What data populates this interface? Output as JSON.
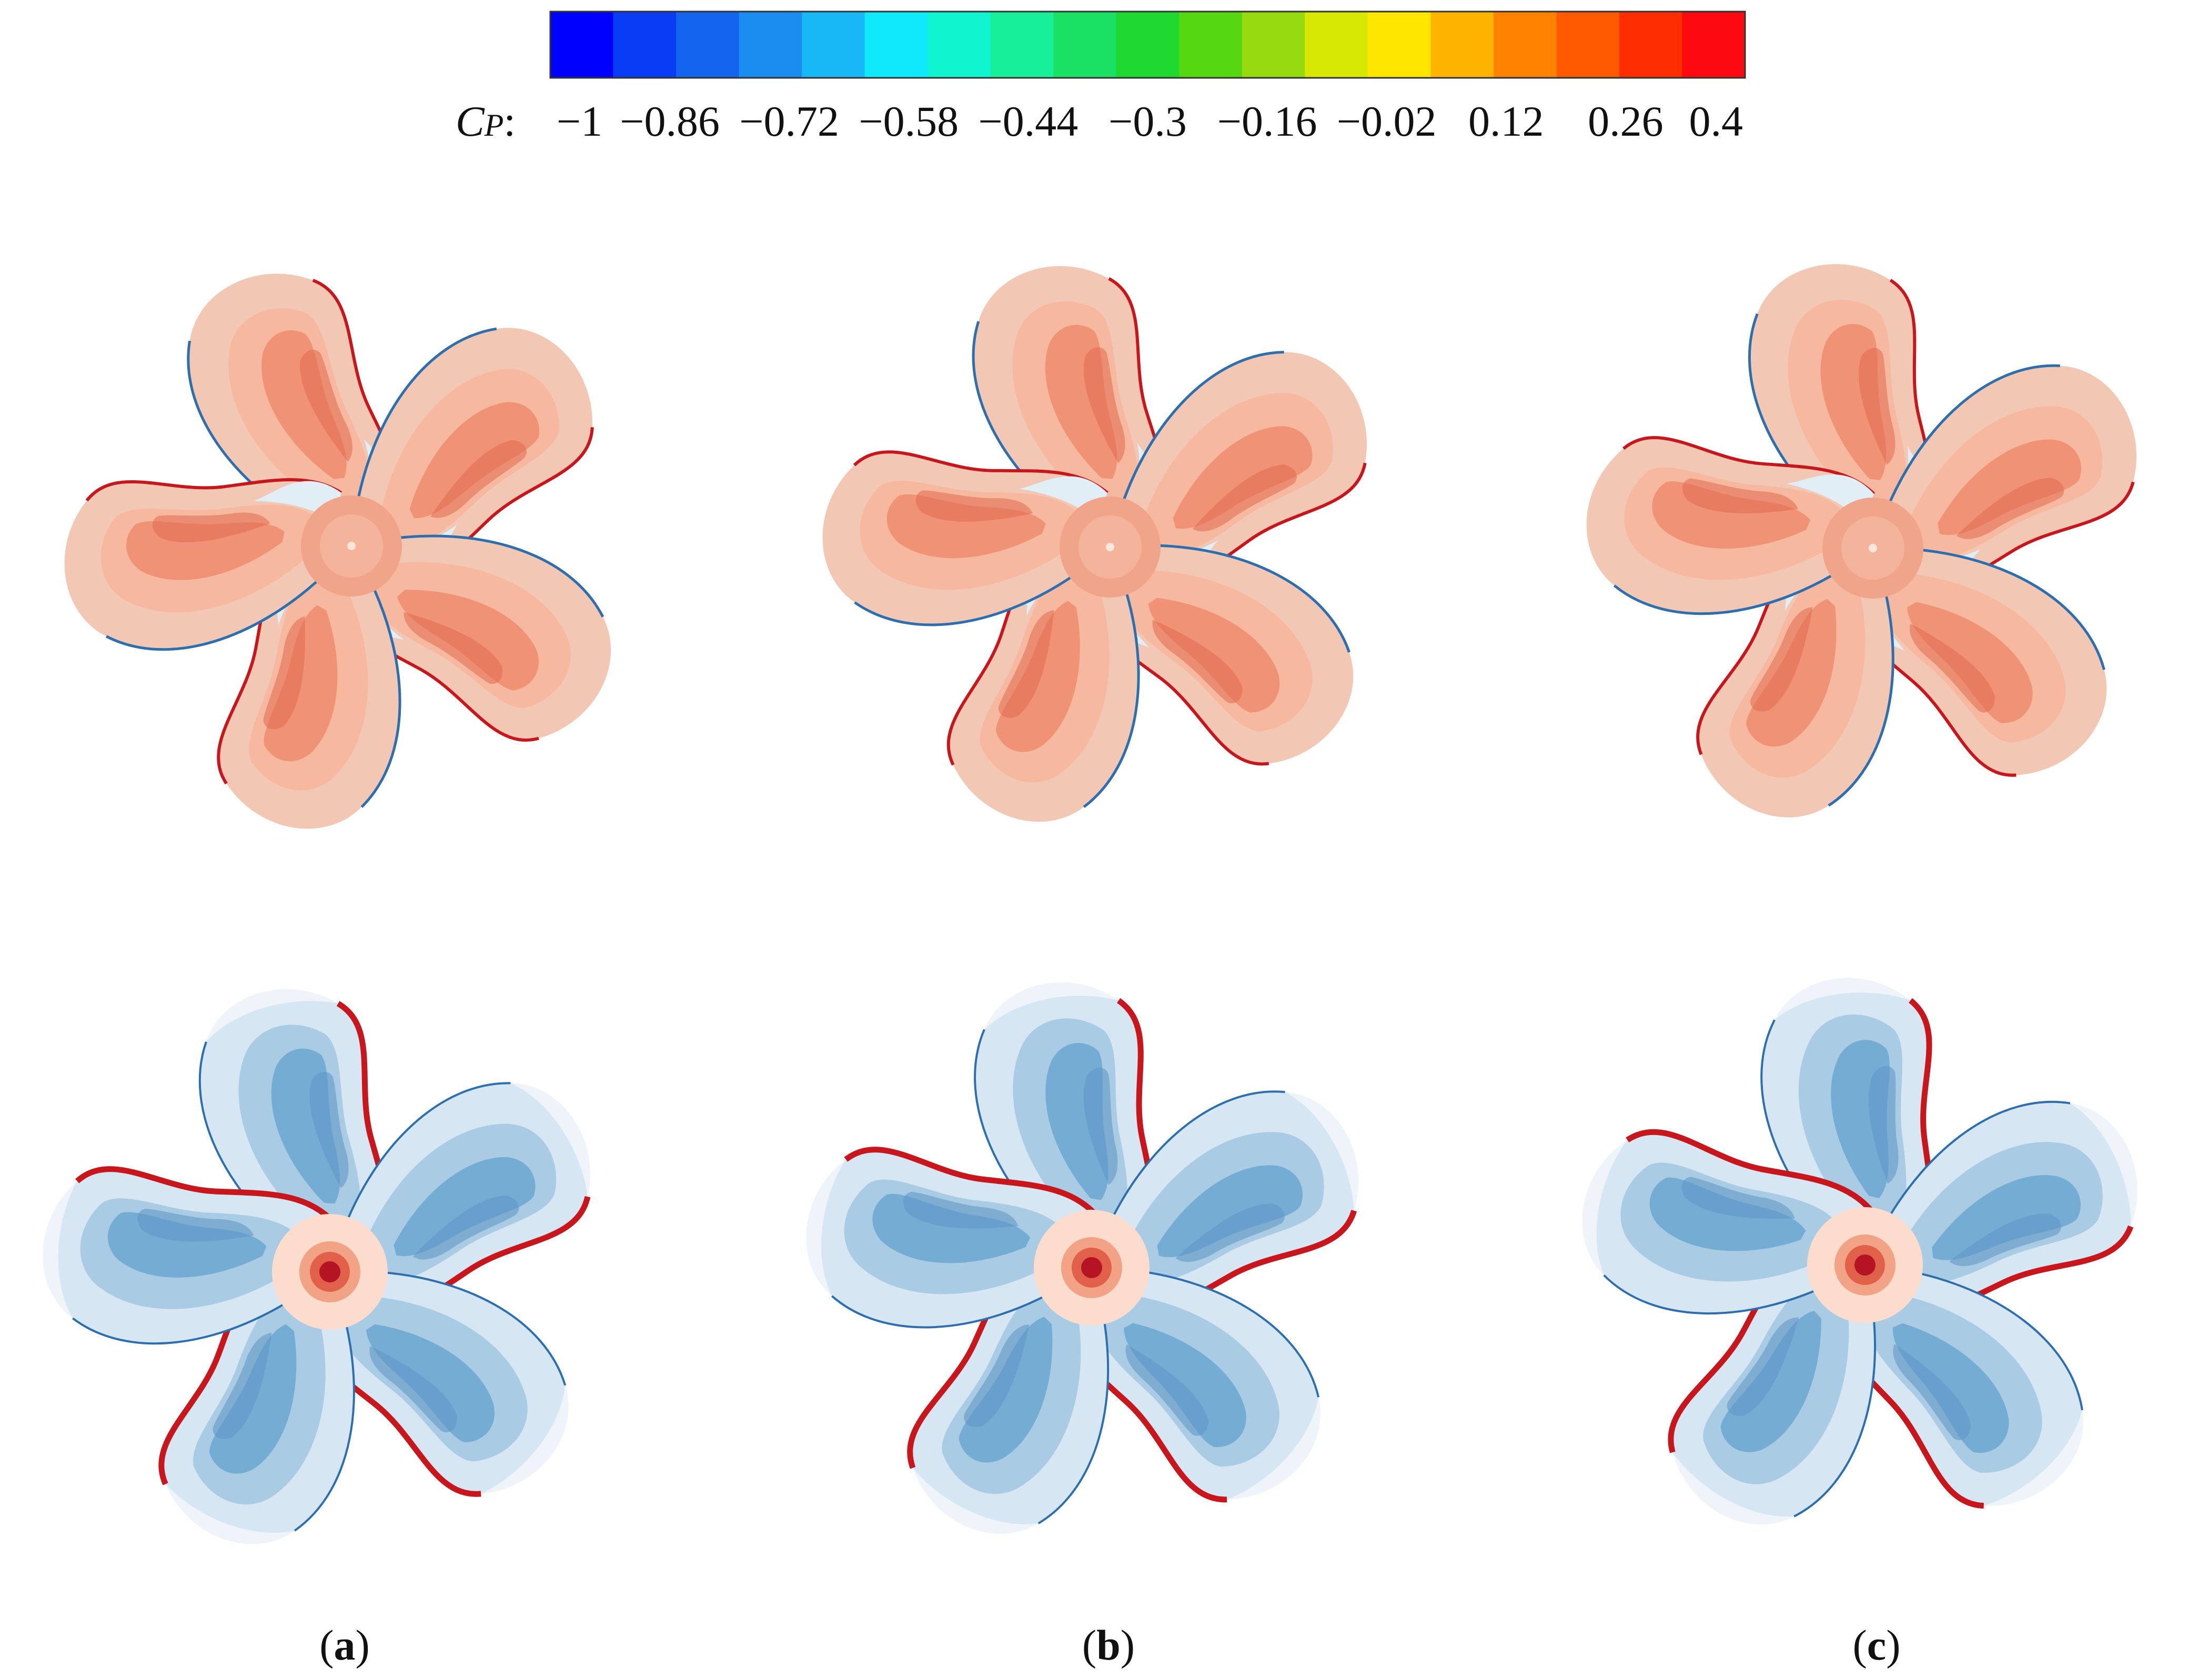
{
  "colorbar": {
    "label_main": "C",
    "label_sub": "P",
    "label_colon": ":",
    "colors": [
      "#0000ff",
      "#0a3cf5",
      "#1464ee",
      "#1b8cf0",
      "#17b8f5",
      "#10e8fb",
      "#10f5cf",
      "#18ef9a",
      "#1ae064",
      "#1ed830",
      "#55d812",
      "#96da10",
      "#d8e805",
      "#ffe600",
      "#ffb400",
      "#ff8200",
      "#ff5a00",
      "#ff2e00",
      "#fc0a10"
    ],
    "ticks": [
      "−1",
      "−0.86",
      "−0.72",
      "−0.58",
      "−0.44",
      "−0.3",
      "−0.16",
      "−0.02",
      "0.12",
      "0.26",
      "0.4"
    ],
    "tick_values": [
      -1,
      -0.86,
      -0.72,
      -0.58,
      -0.44,
      -0.3,
      -0.16,
      -0.02,
      0.12,
      0.26,
      0.4
    ],
    "range": [
      -1,
      0.4
    ]
  },
  "panels": [
    {
      "open": "(",
      "letter": "a",
      "close": ")"
    },
    {
      "open": "(",
      "letter": "b",
      "close": ")"
    },
    {
      "open": "(",
      "letter": "c",
      "close": ")"
    }
  ],
  "rows": [
    "pressure-side",
    "suction-side"
  ],
  "palette": {
    "pressure": [
      "#f2c7b4",
      "#f6b9a0",
      "#ee8e70",
      "#f9d9cb",
      "#e2eef6",
      "#bdd6ea"
    ],
    "suction": [
      "#d6e6f2",
      "#a9cbe3",
      "#6fa8d1",
      "#eef4f9",
      "#fbe3da",
      "#c8161d"
    ],
    "edge_red": "#c8161d",
    "edge_blue": "#2d6fae"
  }
}
